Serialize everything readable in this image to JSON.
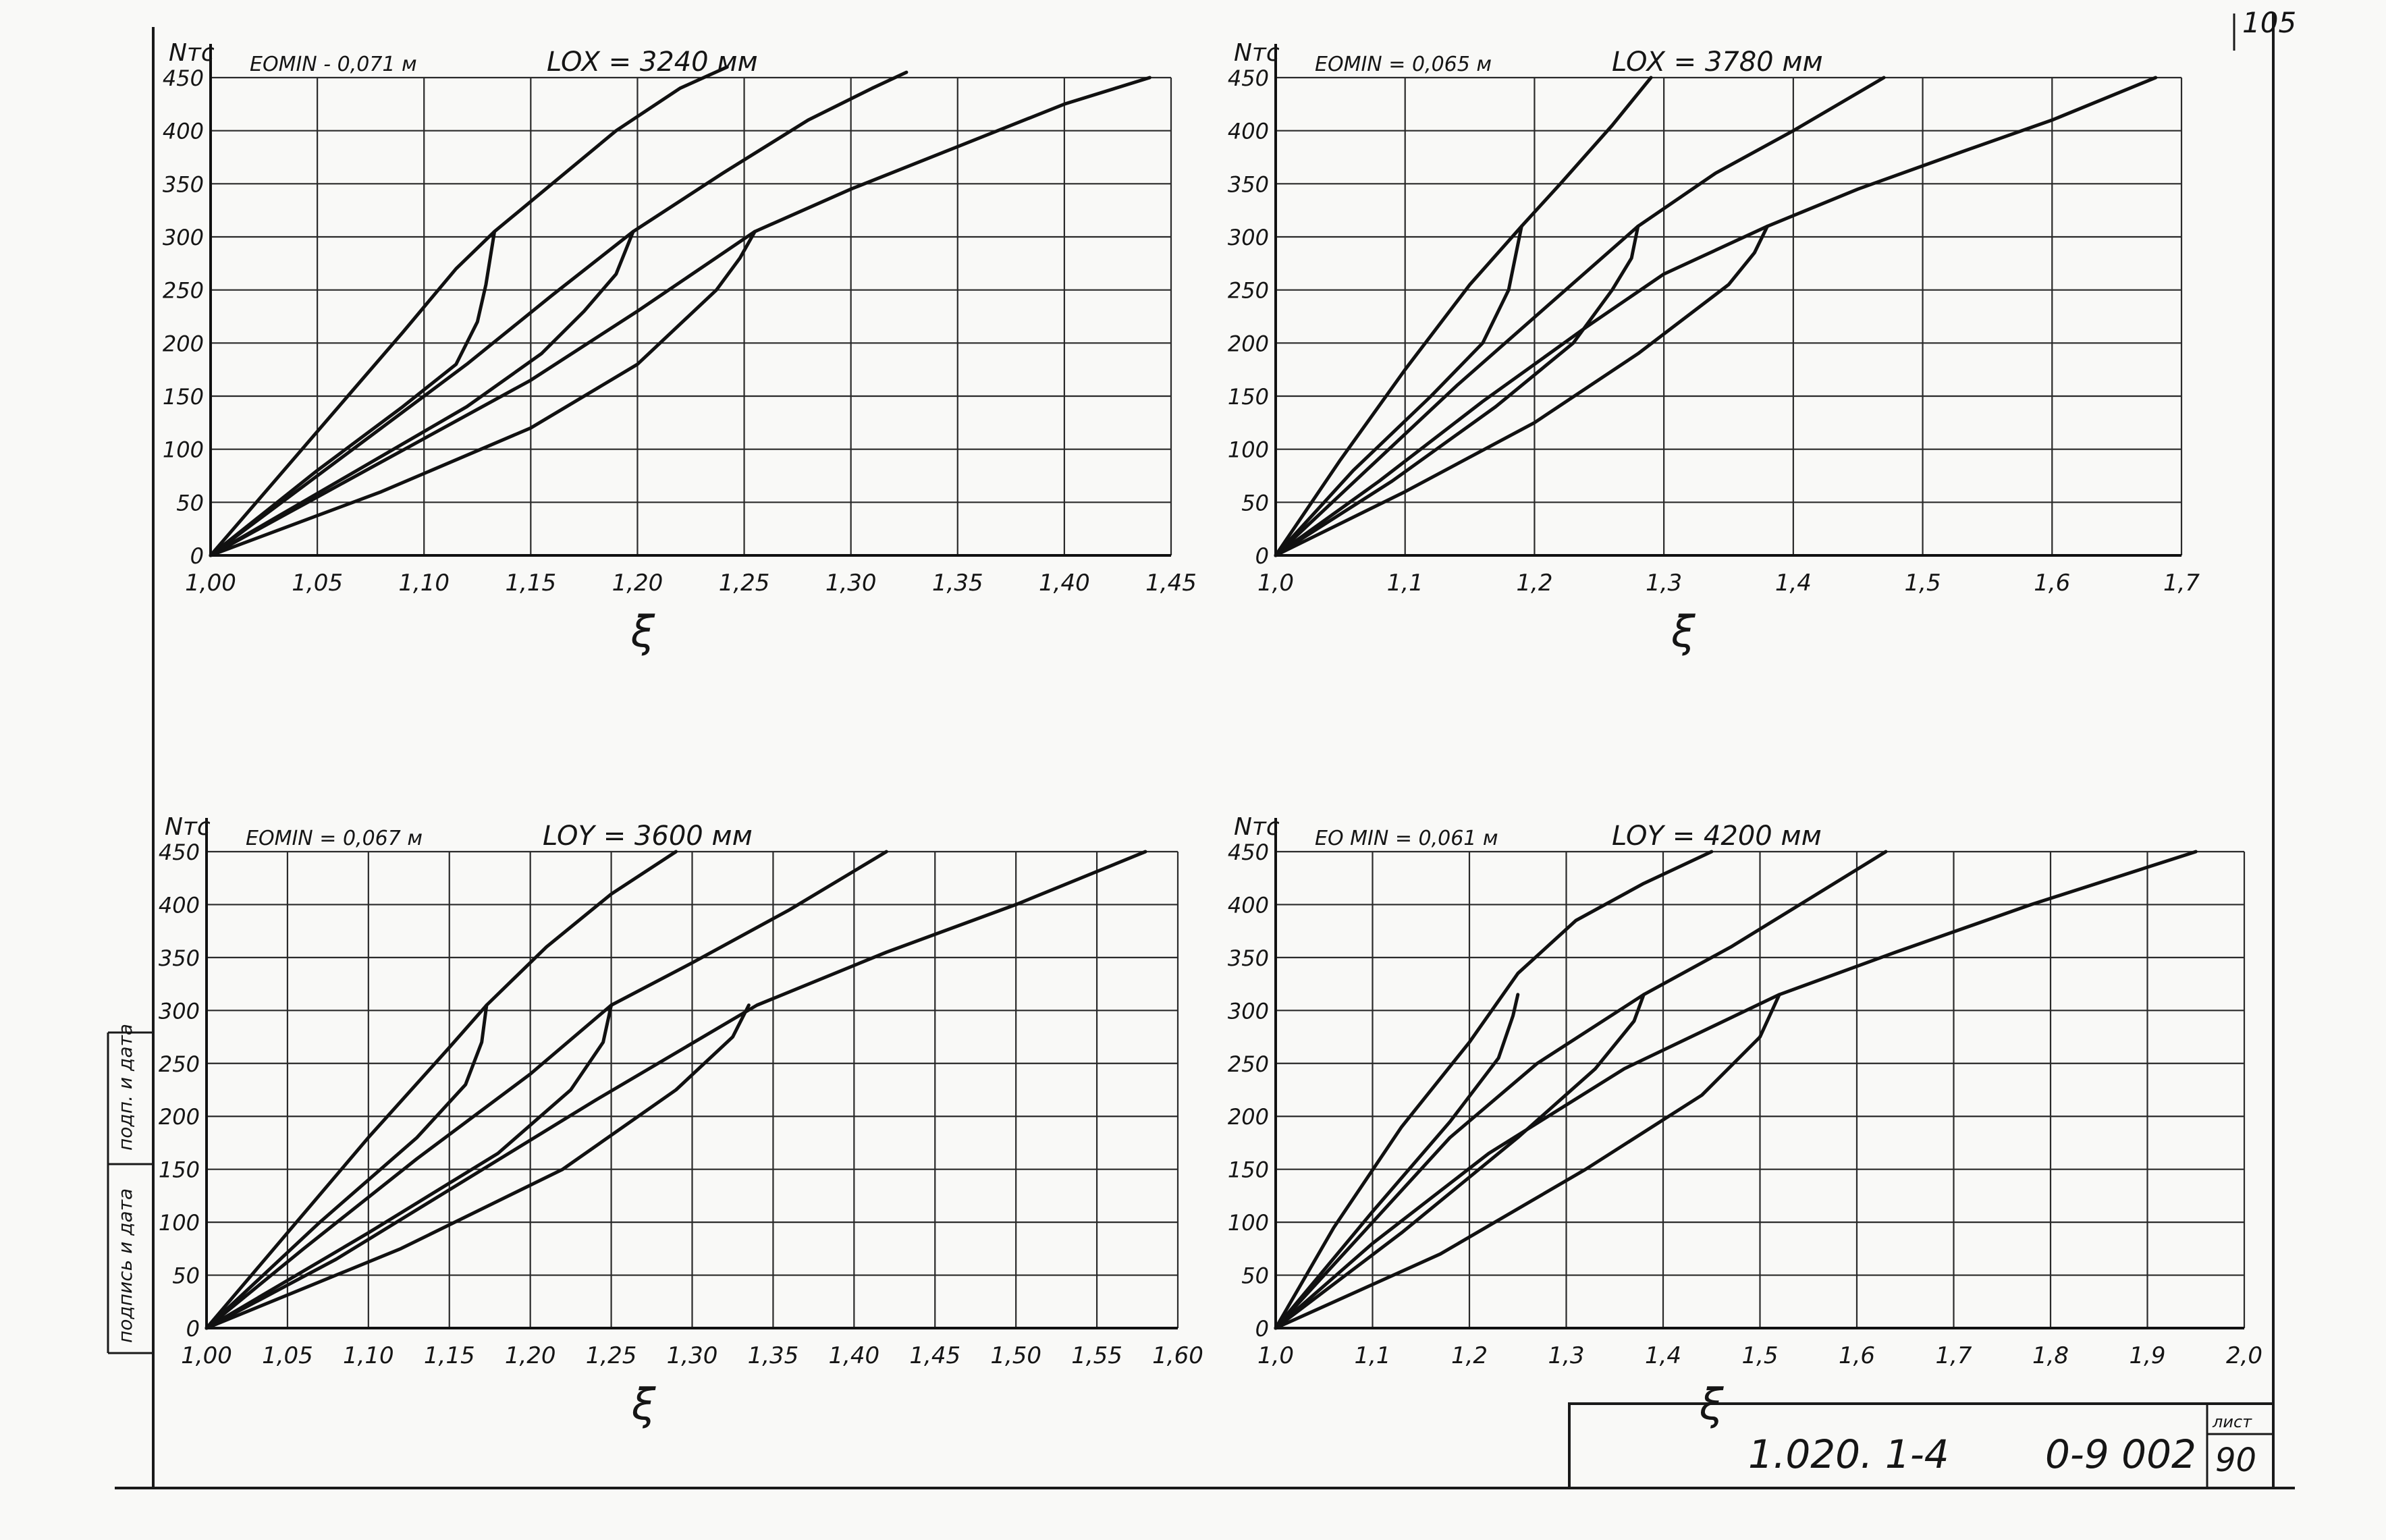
{
  "sheet": {
    "page_number": "105",
    "designation": "1.020. 1-4",
    "code": "0-9 002",
    "list_label": "лист",
    "list_number": "90",
    "margin_stamp_top": "подп. и дата",
    "margin_stamp_bottom": "подпись и дата"
  },
  "chart_data": [
    {
      "type": "line",
      "title": "LOX = 3240 мм",
      "subtitle": "EOMIN - 0,071 м",
      "ylabel": "Nтс",
      "xlabel": "ξ",
      "xlim": [
        1.0,
        1.45
      ],
      "ylim": [
        0,
        450
      ],
      "xticks": [
        1.0,
        1.05,
        1.1,
        1.15,
        1.2,
        1.25,
        1.3,
        1.35,
        1.4,
        1.45
      ],
      "xtick_labels": [
        "1,00",
        "1,05",
        "1,10",
        "1,15",
        "1,20",
        "1,25",
        "1,30",
        "1,35",
        "1,40",
        "1,45"
      ],
      "yticks": [
        0,
        50,
        100,
        150,
        200,
        250,
        300,
        350,
        400,
        450
      ],
      "ytick_labels": [
        "0",
        "50",
        "100",
        "150",
        "200",
        "250",
        "300",
        "350",
        "400",
        "450"
      ],
      "grid": true,
      "series": [
        {
          "x": [
            1.0,
            1.03,
            1.06,
            1.09,
            1.115,
            1.133,
            1.16,
            1.19,
            1.22,
            1.242
          ],
          "y": [
            0,
            70,
            140,
            210,
            270,
            305,
            350,
            400,
            440,
            460
          ]
        },
        {
          "x": [
            1.0,
            1.04,
            1.08,
            1.12,
            1.16,
            1.198,
            1.24,
            1.28,
            1.31,
            1.326
          ],
          "y": [
            0,
            60,
            120,
            180,
            245,
            305,
            360,
            410,
            440,
            455
          ]
        },
        {
          "x": [
            1.0,
            1.05,
            1.1,
            1.15,
            1.2,
            1.255,
            1.3,
            1.35,
            1.4,
            1.44
          ],
          "y": [
            0,
            55,
            110,
            165,
            230,
            305,
            345,
            385,
            425,
            450
          ]
        },
        {
          "x": [
            1.0,
            1.05,
            1.09,
            1.115,
            1.125,
            1.129,
            1.133
          ],
          "y": [
            0,
            80,
            140,
            180,
            220,
            255,
            305
          ]
        },
        {
          "x": [
            1.0,
            1.06,
            1.12,
            1.155,
            1.175,
            1.19,
            1.198
          ],
          "y": [
            0,
            70,
            140,
            190,
            230,
            265,
            305
          ]
        },
        {
          "x": [
            1.0,
            1.08,
            1.15,
            1.2,
            1.237,
            1.248,
            1.255
          ],
          "y": [
            0,
            60,
            120,
            180,
            250,
            280,
            305
          ]
        }
      ]
    },
    {
      "type": "line",
      "title": "LOX = 3780 мм",
      "subtitle": "EOMIN = 0,065 м",
      "ylabel": "Nтс",
      "xlabel": "ξ",
      "xlim": [
        1.0,
        1.7
      ],
      "ylim": [
        0,
        450
      ],
      "xticks": [
        1.0,
        1.1,
        1.2,
        1.3,
        1.4,
        1.5,
        1.6,
        1.7
      ],
      "xtick_labels": [
        "1,0",
        "1,1",
        "1,2",
        "1,3",
        "1,4",
        "1,5",
        "1,6",
        "1,7"
      ],
      "yticks": [
        0,
        50,
        100,
        150,
        200,
        250,
        300,
        350,
        400,
        450
      ],
      "ytick_labels": [
        "0",
        "50",
        "100",
        "150",
        "200",
        "250",
        "300",
        "350",
        "400",
        "450"
      ],
      "grid": true,
      "series": [
        {
          "x": [
            1.0,
            1.05,
            1.1,
            1.15,
            1.19,
            1.22,
            1.26,
            1.29
          ],
          "y": [
            0,
            90,
            175,
            255,
            310,
            350,
            405,
            450
          ]
        },
        {
          "x": [
            1.0,
            1.07,
            1.14,
            1.21,
            1.28,
            1.34,
            1.4,
            1.47
          ],
          "y": [
            0,
            80,
            160,
            235,
            310,
            360,
            400,
            450
          ]
        },
        {
          "x": [
            1.0,
            1.08,
            1.16,
            1.24,
            1.3,
            1.38,
            1.45,
            1.53,
            1.6,
            1.68
          ],
          "y": [
            0,
            70,
            145,
            215,
            265,
            310,
            345,
            380,
            410,
            450
          ]
        },
        {
          "x": [
            1.0,
            1.06,
            1.12,
            1.16,
            1.18,
            1.185,
            1.19
          ],
          "y": [
            0,
            80,
            150,
            200,
            250,
            280,
            310
          ]
        },
        {
          "x": [
            1.0,
            1.09,
            1.17,
            1.23,
            1.26,
            1.275,
            1.28
          ],
          "y": [
            0,
            70,
            140,
            200,
            250,
            280,
            310
          ]
        },
        {
          "x": [
            1.0,
            1.1,
            1.2,
            1.28,
            1.35,
            1.37,
            1.38
          ],
          "y": [
            0,
            60,
            125,
            190,
            255,
            285,
            310
          ]
        }
      ]
    },
    {
      "type": "line",
      "title": "LOY = 3600 мм",
      "subtitle": "EOMIN = 0,067 м",
      "ylabel": "Nтс",
      "xlabel": "ξ",
      "xlim": [
        1.0,
        1.6
      ],
      "ylim": [
        0,
        450
      ],
      "xticks": [
        1.0,
        1.05,
        1.1,
        1.15,
        1.2,
        1.25,
        1.3,
        1.35,
        1.4,
        1.45,
        1.5,
        1.55,
        1.6
      ],
      "xtick_labels": [
        "1,00",
        "1,05",
        "1,10",
        "1,15",
        "1,20",
        "1,25",
        "1,30",
        "1,35",
        "1,40",
        "1,45",
        "1,50",
        "1,55",
        "1,60"
      ],
      "yticks": [
        0,
        50,
        100,
        150,
        200,
        250,
        300,
        350,
        400,
        450
      ],
      "ytick_labels": [
        "0",
        "50",
        "100",
        "150",
        "200",
        "250",
        "300",
        "350",
        "400",
        "450"
      ],
      "grid": true,
      "series": [
        {
          "x": [
            1.0,
            1.05,
            1.1,
            1.15,
            1.173,
            1.21,
            1.25,
            1.29
          ],
          "y": [
            0,
            90,
            180,
            265,
            305,
            360,
            410,
            450
          ]
        },
        {
          "x": [
            1.0,
            1.06,
            1.13,
            1.2,
            1.25,
            1.3,
            1.36,
            1.42
          ],
          "y": [
            0,
            75,
            160,
            240,
            305,
            345,
            395,
            450
          ]
        },
        {
          "x": [
            1.0,
            1.08,
            1.16,
            1.24,
            1.34,
            1.42,
            1.5,
            1.58
          ],
          "y": [
            0,
            65,
            140,
            215,
            305,
            355,
            400,
            450
          ]
        },
        {
          "x": [
            1.0,
            1.07,
            1.13,
            1.16,
            1.17,
            1.173
          ],
          "y": [
            0,
            100,
            180,
            230,
            270,
            305
          ]
        },
        {
          "x": [
            1.0,
            1.1,
            1.18,
            1.225,
            1.245,
            1.25
          ],
          "y": [
            0,
            90,
            165,
            225,
            270,
            305
          ]
        },
        {
          "x": [
            1.0,
            1.12,
            1.22,
            1.29,
            1.325,
            1.335
          ],
          "y": [
            0,
            75,
            150,
            225,
            275,
            305
          ]
        }
      ]
    },
    {
      "type": "line",
      "title": "LOY = 4200 мм",
      "subtitle": "EO MIN = 0,061 м",
      "ylabel": "Nтс",
      "xlabel": "ξ",
      "xlim": [
        1.0,
        2.0
      ],
      "ylim": [
        0,
        450
      ],
      "xticks": [
        1.0,
        1.1,
        1.2,
        1.3,
        1.4,
        1.5,
        1.6,
        1.7,
        1.8,
        1.9,
        2.0
      ],
      "xtick_labels": [
        "1,0",
        "1,1",
        "1,2",
        "1,3",
        "1,4",
        "1,5",
        "1,6",
        "1,7",
        "1,8",
        "1,9",
        "2,0"
      ],
      "yticks": [
        0,
        50,
        100,
        150,
        200,
        250,
        300,
        350,
        400,
        450
      ],
      "ytick_labels": [
        "0",
        "50",
        "100",
        "150",
        "200",
        "250",
        "300",
        "350",
        "400",
        "450"
      ],
      "grid": true,
      "series": [
        {
          "x": [
            1.0,
            1.06,
            1.13,
            1.2,
            1.25,
            1.31,
            1.38,
            1.45
          ],
          "y": [
            0,
            95,
            190,
            270,
            335,
            385,
            420,
            450
          ]
        },
        {
          "x": [
            1.0,
            1.09,
            1.18,
            1.27,
            1.38,
            1.47,
            1.55,
            1.63
          ],
          "y": [
            0,
            90,
            180,
            250,
            315,
            360,
            405,
            450
          ]
        },
        {
          "x": [
            1.0,
            1.1,
            1.22,
            1.36,
            1.52,
            1.64,
            1.78,
            1.95
          ],
          "y": [
            0,
            80,
            165,
            245,
            315,
            355,
            400,
            450
          ]
        },
        {
          "x": [
            1.0,
            1.1,
            1.18,
            1.23,
            1.245,
            1.25
          ],
          "y": [
            0,
            110,
            195,
            255,
            295,
            315
          ]
        },
        {
          "x": [
            1.0,
            1.13,
            1.25,
            1.33,
            1.37,
            1.38
          ],
          "y": [
            0,
            90,
            180,
            245,
            290,
            315
          ]
        },
        {
          "x": [
            1.0,
            1.17,
            1.32,
            1.44,
            1.5,
            1.52
          ],
          "y": [
            0,
            70,
            150,
            220,
            275,
            315
          ]
        }
      ]
    }
  ]
}
